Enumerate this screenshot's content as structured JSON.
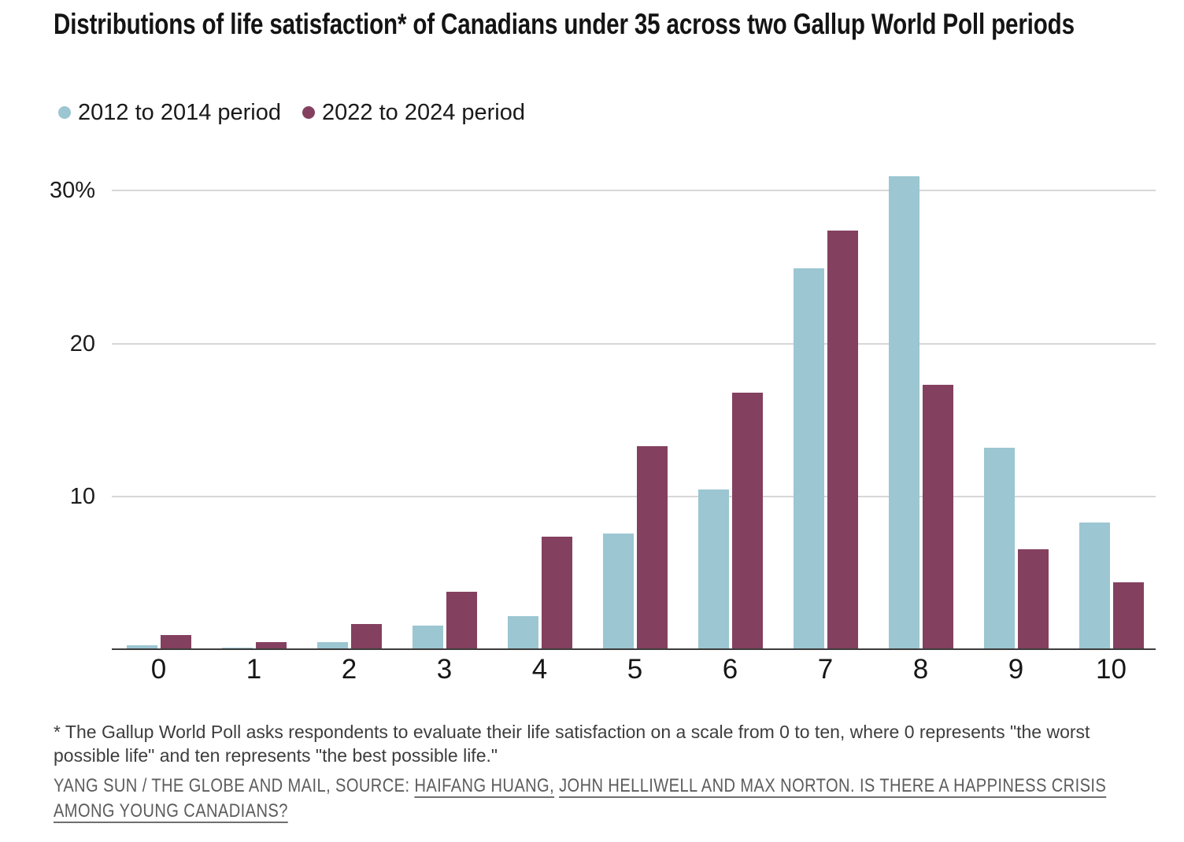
{
  "header": {
    "title": "Distributions of life satisfaction* of Canadians under 35 across two Gallup World Poll periods"
  },
  "chart_data": {
    "type": "bar",
    "title": "Distributions of life satisfaction* of Canadians under 35 across two Gallup World Poll periods",
    "categories": [
      "0",
      "1",
      "2",
      "3",
      "4",
      "5",
      "6",
      "7",
      "8",
      "9",
      "10"
    ],
    "series": [
      {
        "name": "2012 to 2014 period",
        "color": "#9bc6d2",
        "values": [
          0.2,
          0.05,
          0.4,
          1.5,
          2.1,
          7.5,
          10.4,
          24.8,
          30.8,
          13.1,
          8.2
        ]
      },
      {
        "name": "2022 to 2024 period",
        "color": "#84405f",
        "values": [
          0.9,
          0.4,
          1.6,
          3.7,
          7.3,
          13.2,
          16.7,
          27.3,
          17.2,
          6.5,
          4.3
        ]
      }
    ],
    "xlabel": "",
    "ylabel": "",
    "ylim": [
      0,
      30
    ],
    "yticks": [
      {
        "value": 10,
        "label": "10"
      },
      {
        "value": 20,
        "label": "20"
      },
      {
        "value": 30,
        "label": "30%"
      }
    ],
    "grid": "horizontal",
    "legend_position": "top-left"
  },
  "footnote": {
    "text": "* The Gallup World Poll asks respondents to evaluate their life satisfaction on a scale from 0 to ten, where 0 represents \"the worst possible life\" and ten represents \"the best possible life.\""
  },
  "credit": {
    "byline": "YANG SUN / THE GLOBE AND MAIL, SOURCE: ",
    "link_authors": "HAIFANG HUANG,",
    "link_title": "JOHN HELLIWELL AND MAX NORTON. IS THERE A HAPPINESS CRISIS AMONG YOUNG CANADIANS?"
  },
  "colors": {
    "series_2012": "#9bc6d2",
    "series_2022": "#84405f",
    "gridline": "#d7d7d7",
    "axis": "#3c3c3c",
    "text": "#141414",
    "credit_text": "#5c5c5c"
  }
}
